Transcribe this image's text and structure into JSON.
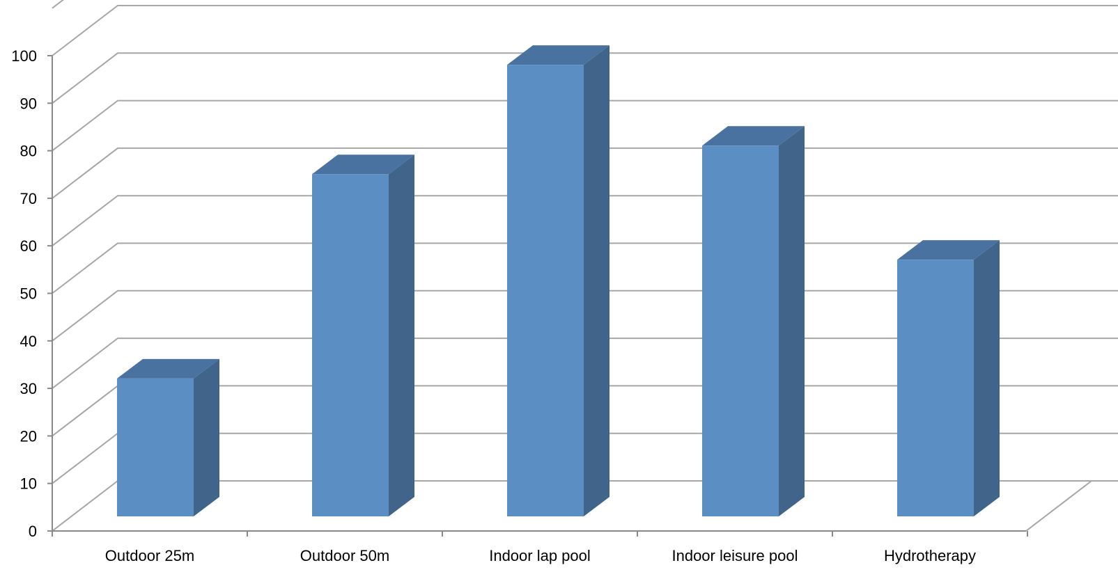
{
  "chart_data": {
    "type": "bar",
    "categories": [
      "Outdoor 25m",
      "Outdoor 50m",
      "Indoor lap pool",
      "Indoor leisure pool",
      "Hydrotherapy"
    ],
    "values": [
      29,
      72,
      95,
      78,
      54
    ],
    "ylim": [
      0,
      100
    ],
    "yticks": [
      0,
      10,
      20,
      30,
      40,
      50,
      60,
      70,
      80,
      90,
      100
    ],
    "grid": true,
    "legend": "none",
    "colors": {
      "bar_front": "#5b8fc4",
      "bar_side": "#41648b",
      "bar_top": "#4a72a0",
      "grid": "#a6a6a6",
      "axis": "#898989"
    }
  }
}
